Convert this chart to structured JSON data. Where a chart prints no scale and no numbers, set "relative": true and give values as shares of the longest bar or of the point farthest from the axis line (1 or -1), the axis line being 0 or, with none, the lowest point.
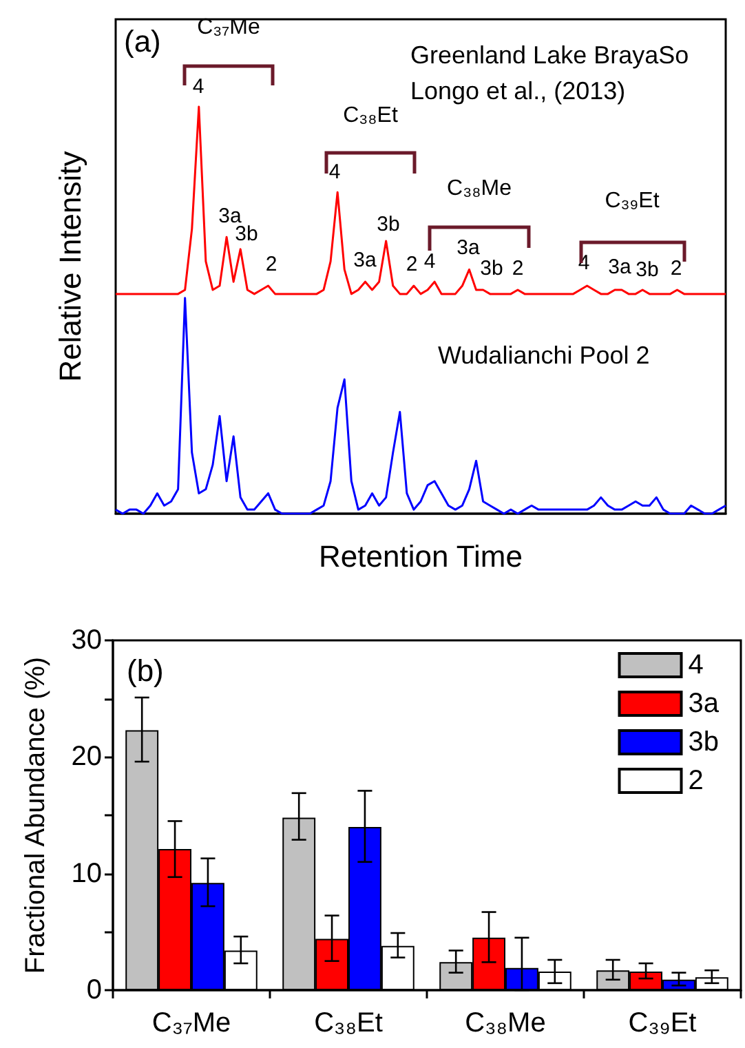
{
  "chart_data": [
    {
      "type": "line",
      "relative": true,
      "xlabel": "Retention Time",
      "ylabel": "Relative Intensity",
      "tick_labels": false,
      "grid": false,
      "legend": false,
      "line_style": "solid",
      "categories": [
        null,
        null,
        null,
        null,
        null,
        null,
        null,
        null,
        null,
        null,
        null,
        null,
        null,
        null,
        null,
        null,
        null,
        null,
        null,
        null,
        null,
        null,
        null,
        null,
        null,
        null,
        null,
        null,
        null,
        null,
        null,
        null,
        null,
        null,
        null,
        null,
        null,
        null,
        null,
        null,
        null,
        null,
        null,
        null,
        null,
        null,
        null,
        null,
        null,
        null,
        null,
        null,
        null,
        null,
        null,
        null,
        null,
        null,
        null,
        null,
        null,
        null,
        null,
        null,
        null,
        null,
        null,
        null,
        null,
        null,
        null,
        null,
        null,
        null,
        null,
        null,
        null,
        null,
        null,
        null,
        null,
        null,
        null,
        null,
        null,
        null,
        null,
        null,
        null
      ],
      "series": [
        {
          "color": "#ff0000",
          "values": [
            0.54,
            0.54,
            0.54,
            0.54,
            0.54,
            0.54,
            0.54,
            0.54,
            0.54,
            0.54,
            0.55,
            0.7,
            1.0,
            0.62,
            0.55,
            0.56,
            0.68,
            0.57,
            0.65,
            0.55,
            0.54,
            0.55,
            0.56,
            0.54,
            0.54,
            0.54,
            0.54,
            0.54,
            0.54,
            0.54,
            0.55,
            0.62,
            0.79,
            0.6,
            0.54,
            0.55,
            0.57,
            0.55,
            0.57,
            0.67,
            0.56,
            0.54,
            0.54,
            0.56,
            0.54,
            0.55,
            0.57,
            0.54,
            0.54,
            0.54,
            0.56,
            0.6,
            0.55,
            0.55,
            0.54,
            0.54,
            0.54,
            0.54,
            0.55,
            0.54,
            0.54,
            0.54,
            0.54,
            0.54,
            0.54,
            0.54,
            0.54,
            0.55,
            0.56,
            0.55,
            0.54,
            0.54,
            0.55,
            0.55,
            0.54,
            0.54,
            0.55,
            0.54,
            0.54,
            0.54,
            0.54,
            0.55,
            0.54,
            0.54,
            0.54,
            0.54,
            0.54,
            0.54,
            0.54
          ]
        },
        {
          "color": "#0000ff",
          "values": [
            0.01,
            0.0,
            0.01,
            0.01,
            0.0,
            0.02,
            0.05,
            0.02,
            0.03,
            0.06,
            0.53,
            0.15,
            0.05,
            0.06,
            0.12,
            0.24,
            0.08,
            0.19,
            0.04,
            0.01,
            0.01,
            0.03,
            0.05,
            0.01,
            0.0,
            0.0,
            0.0,
            0.0,
            0.0,
            0.01,
            0.02,
            0.08,
            0.26,
            0.33,
            0.08,
            0.01,
            0.02,
            0.05,
            0.02,
            0.04,
            0.15,
            0.25,
            0.05,
            0.01,
            0.03,
            0.07,
            0.08,
            0.05,
            0.02,
            0.01,
            0.02,
            0.06,
            0.13,
            0.03,
            0.02,
            0.01,
            0.0,
            0.01,
            0.0,
            0.01,
            0.02,
            0.01,
            0.01,
            0.01,
            0.01,
            0.01,
            0.01,
            0.01,
            0.01,
            0.02,
            0.04,
            0.02,
            0.01,
            0.01,
            0.02,
            0.03,
            0.02,
            0.02,
            0.04,
            0.01,
            0.0,
            0.0,
            0.0,
            0.02,
            0.01,
            0.0,
            0.0,
            0.01,
            0.02
          ]
        }
      ],
      "annotations": [
        "(a)",
        "Greenland Lake BrayaSo",
        "Longo et al., (2013)",
        "Wudalianchi Pool 2",
        "C₃₇Me",
        "C₃₈Et",
        "C₃₈Me",
        "C₃₉Et",
        "4",
        "3a",
        "3b",
        "2",
        "4",
        "3a",
        "3b",
        "2",
        "4",
        "3a",
        "3b",
        "2",
        "4",
        "3a",
        "3b",
        "2"
      ]
    },
    {
      "type": "bar",
      "ylabel": "Fractional Abundance (%)",
      "categories": [
        "C₃₇Me",
        "C₃₈Et",
        "C₃₈Me",
        "C₃₉Et"
      ],
      "ylim": [
        0,
        30
      ],
      "yticks": [
        0,
        {
          "value": 5,
          "label": null
        },
        10,
        {
          "value": 15,
          "label": null
        },
        20,
        {
          "value": 25,
          "label": null
        },
        30
      ],
      "grid": false,
      "legend": "top right",
      "series": [
        {
          "name": "4",
          "color": "#c0c0c0",
          "values": [
            22.3,
            14.8,
            2.4,
            1.7
          ],
          "errors": [
            [
              19.6,
              25.1
            ],
            [
              12.9,
              16.9
            ],
            [
              1.5,
              3.4
            ],
            [
              0.9,
              2.6
            ]
          ]
        },
        {
          "name": "3a",
          "color": "#ff0000",
          "values": [
            12.1,
            4.4,
            4.5,
            1.6
          ],
          "errors": [
            [
              9.7,
              14.5
            ],
            [
              2.5,
              6.4
            ],
            [
              2.4,
              6.7
            ],
            [
              1.0,
              2.3
            ]
          ]
        },
        {
          "name": "3b",
          "color": "#0000ff",
          "values": [
            9.2,
            14.0,
            1.9,
            0.9
          ],
          "errors": [
            [
              7.2,
              11.3
            ],
            [
              11.0,
              17.1
            ],
            [
              0,
              4.5
            ],
            [
              0.4,
              1.5
            ]
          ]
        },
        {
          "name": "2",
          "color": "#ffffff",
          "values": [
            3.4,
            3.8,
            1.6,
            1.1
          ],
          "errors": [
            [
              2.3,
              4.6
            ],
            [
              2.8,
              4.9
            ],
            [
              0.6,
              2.6
            ],
            [
              0.6,
              1.7
            ]
          ]
        }
      ],
      "annotations": [
        "(b)"
      ]
    }
  ]
}
